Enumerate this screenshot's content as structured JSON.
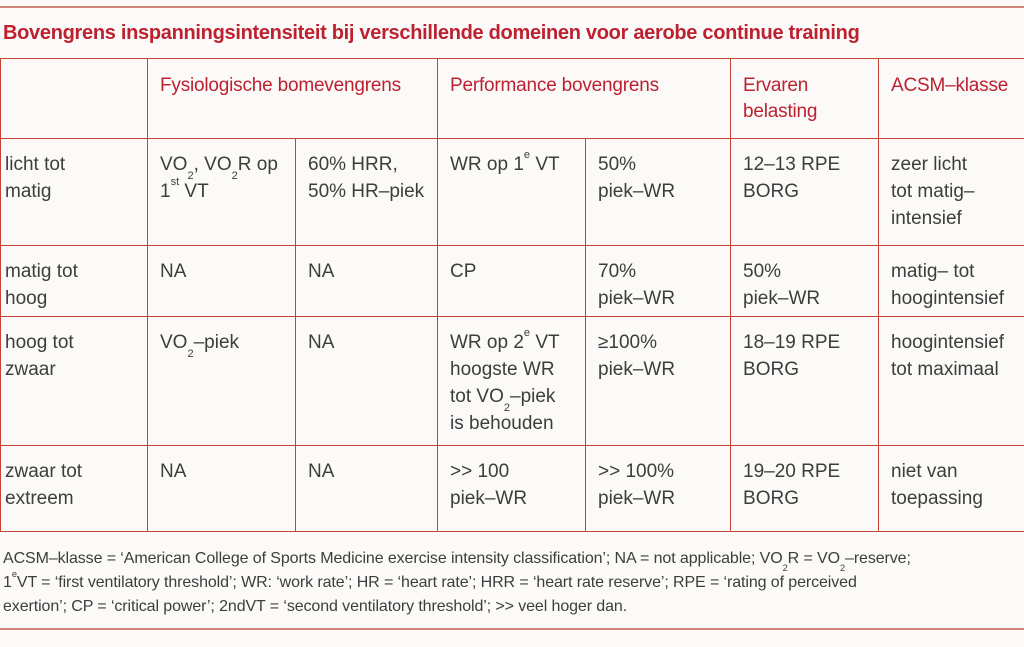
{
  "title": "Bovengrens inspanningsintensiteit bij verschillende domeinen voor aerobe continue training",
  "colors": {
    "accent_red": "#bd2130",
    "table_border_red": "#c44536",
    "rule_salmon": "#d2857b",
    "body_text": "#3d3d3c",
    "background": "#fbfaf8"
  },
  "table": {
    "headers": [
      "Fysiologische bomevengrens",
      "Performance bovengrens",
      "Ervaren\nbelasting",
      "ACSM–klasse"
    ],
    "rows": [
      {
        "cells": [
          "licht tot\nmatig",
          "VO~2~, VO~2~R op\n1^st^ VT",
          "60% HRR,\n50% HR–piek",
          "WR op 1^e^ VT",
          "50%\npiek–WR",
          "12–13 RPE\nBORG",
          "zeer licht\ntot matig–\nintensief"
        ]
      },
      {
        "cells": [
          "matig tot\nhoog",
          "NA",
          "NA",
          "CP",
          "70%\npiek–WR",
          "50%\npiek–WR",
          "matig– tot\nhoogintensief"
        ]
      },
      {
        "cells": [
          "hoog tot\nzwaar",
          "VO~2~–piek",
          "NA",
          "WR op 2^e^ VT\nhoogste WR\ntot VO~2~–piek\nis behouden",
          "≥100%\npiek–WR",
          "18–19 RPE\nBORG",
          "hoogintensief\ntot maximaal"
        ]
      },
      {
        "cells": [
          "zwaar tot\nextreem",
          "NA",
          "NA",
          ">> 100\npiek–WR",
          ">> 100%\npiek–WR",
          "19–20 RPE\nBORG",
          "niet van\ntoepassing"
        ]
      }
    ]
  },
  "footnote": "ACSM–klasse = ‘American College of Sports Medicine exercise intensity classification’; NA = not applicable; VO~2~R = VO~2~–reserve;\n1^e^VT = ‘first ventilatory threshold’; WR: ‘work rate’; HR = ‘heart rate’; HRR = ‘heart rate reserve’; RPE = ‘rating of perceived\nexertion’; CP = ‘critical power’; 2ndVT = ‘second ventilatory threshold’; >> veel hoger dan."
}
